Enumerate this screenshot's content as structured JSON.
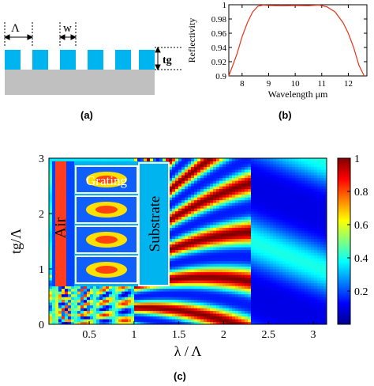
{
  "panel_a": {
    "label": "(a)",
    "period_symbol": "Λ",
    "width_symbol": "w",
    "thickness_label": "tg",
    "colors": {
      "grating": "#00b4f0",
      "substrate": "#c0c0c0"
    }
  },
  "panel_b": {
    "label": "(b)"
  },
  "panel_c": {
    "label": "(c)",
    "region_labels": {
      "air": "Air",
      "grating": "Grating",
      "substrate": "Substrate"
    },
    "colorbar": {
      "ticks": [
        "1",
        "0.8",
        "0.6",
        "0.4",
        "0.2"
      ],
      "ticks_values": [
        1,
        0.8,
        0.6,
        0.4,
        0.2
      ]
    }
  },
  "chart_data": [
    {
      "type": "line",
      "xlabel": "Wavelength μm",
      "ylabel": "Reflectivity",
      "xlim": [
        7.5,
        12.7
      ],
      "ylim": [
        0.9,
        1.0
      ],
      "xticks": [
        8,
        9,
        10,
        11,
        12
      ],
      "yticks": [
        0.9,
        0.92,
        0.94,
        0.96,
        0.98,
        1
      ],
      "xtick_labels": [
        "8",
        "9",
        "10",
        "11",
        "12"
      ],
      "ytick_labels": [
        "0.9",
        "0.92",
        "0.94",
        "0.96",
        "0.98",
        "1"
      ],
      "grid": false,
      "color": "#e8341c",
      "series": [
        {
          "x": [
            7.5,
            7.8,
            8.0,
            8.2,
            8.4,
            8.6,
            8.8,
            9.0,
            9.5,
            10.0,
            10.5,
            10.9,
            11.2,
            11.5,
            11.8,
            12.0,
            12.2,
            12.4,
            12.6
          ],
          "y": [
            0.9,
            0.93,
            0.955,
            0.975,
            0.99,
            0.998,
            0.9995,
            0.999,
            0.9985,
            0.999,
            0.9988,
            0.9995,
            0.997,
            0.99,
            0.975,
            0.96,
            0.94,
            0.915,
            0.9
          ]
        }
      ]
    },
    {
      "type": "heatmap",
      "xlabel": "λ / Λ",
      "ylabel": "tg/Λ",
      "xlim": [
        0.05,
        3.15
      ],
      "ylim": [
        0,
        3
      ],
      "xticks": [
        0.5,
        1,
        1.5,
        2,
        2.5,
        3
      ],
      "yticks": [
        0,
        1,
        2,
        3
      ],
      "xtick_labels": [
        "0.5",
        "1",
        "1.5",
        "2",
        "2.5",
        "3"
      ],
      "ytick_labels": [
        "0",
        "1",
        "2",
        "3"
      ],
      "zlim": [
        0,
        1
      ],
      "colormap": "jet"
    }
  ]
}
